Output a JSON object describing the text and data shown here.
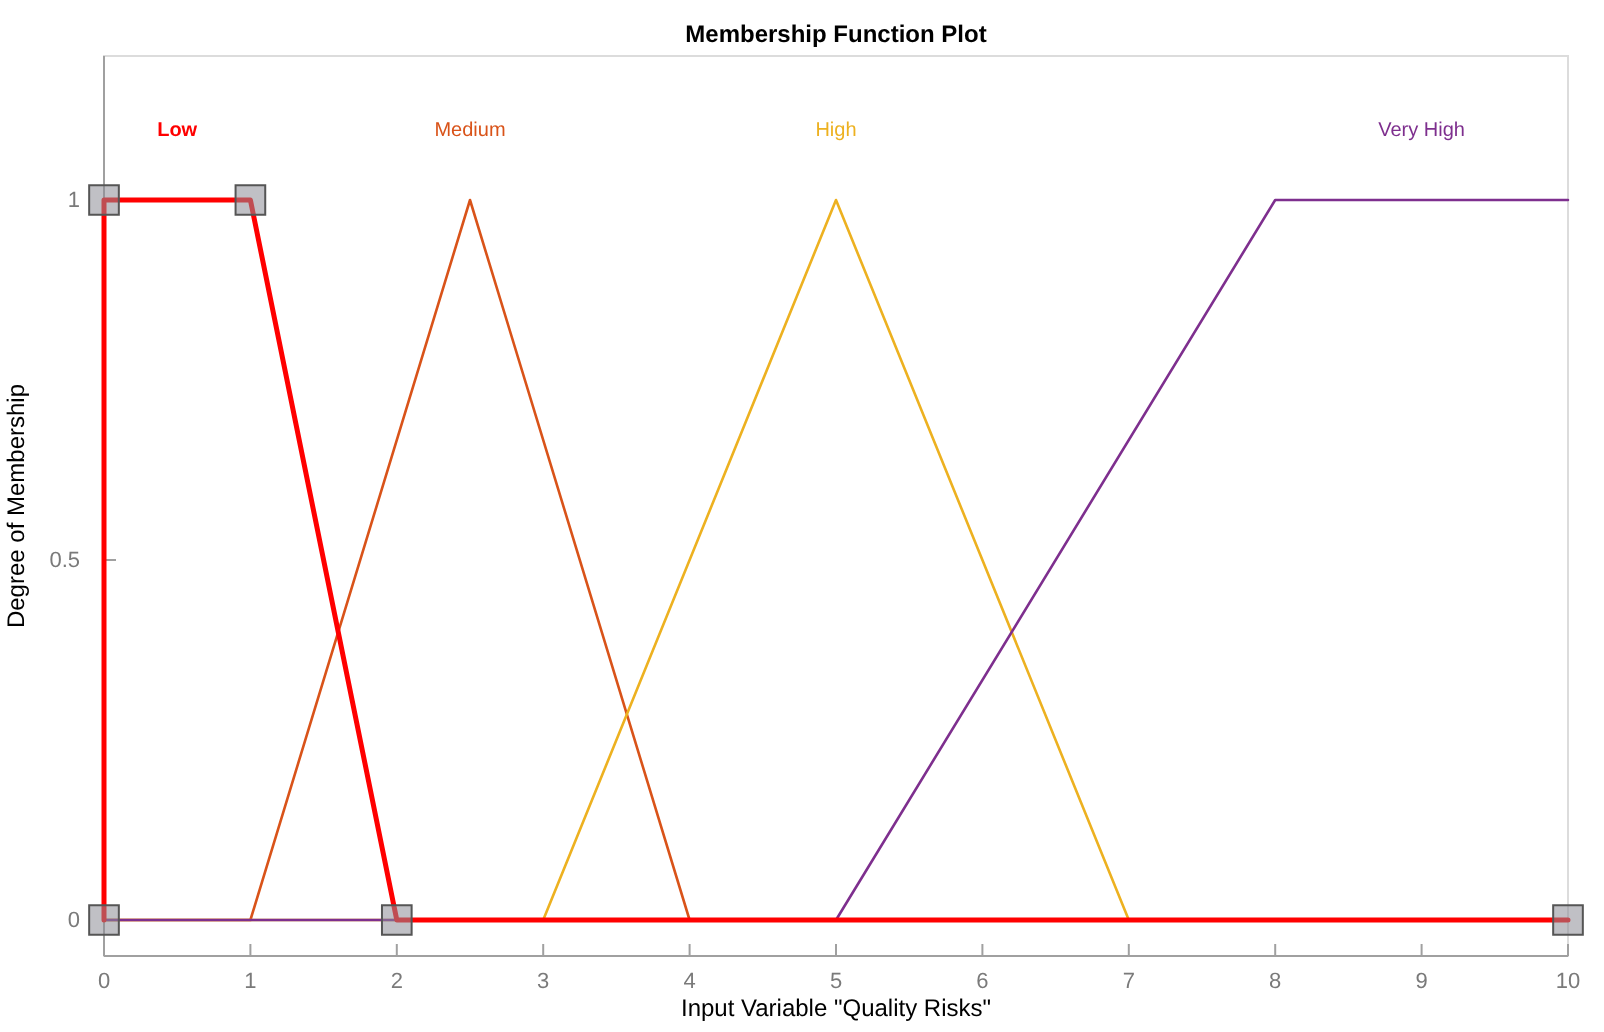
{
  "chart_data": {
    "type": "line",
    "title": "Membership Function Plot",
    "xlabel": "Input Variable \"Quality Risks\"",
    "ylabel": "Degree of Membership",
    "xlim": [
      0,
      10
    ],
    "xticks": [
      0,
      1,
      2,
      3,
      4,
      5,
      6,
      7,
      8,
      9,
      10
    ],
    "ylim": [
      -0.05,
      1.2
    ],
    "yticks": [
      0,
      0.5,
      1
    ],
    "grid": false,
    "line_style": "solid",
    "series": [
      {
        "name": "Medium",
        "color": "#d95319",
        "x": [
          0,
          1,
          2.5,
          4,
          10
        ],
        "values": [
          0,
          0,
          1,
          0,
          0
        ],
        "marker": "none"
      },
      {
        "name": "High",
        "color": "#edb120",
        "x": [
          0,
          3,
          5,
          7,
          10
        ],
        "values": [
          0,
          0,
          1,
          0,
          0
        ],
        "marker": "none"
      },
      {
        "name": "Very High",
        "color": "#7e2f8e",
        "x": [
          0,
          5,
          8,
          10
        ],
        "values": [
          0,
          0,
          1,
          1
        ],
        "marker": "none"
      },
      {
        "name": "Low",
        "color": "#ff0000",
        "x": [
          0,
          0,
          1,
          2,
          10
        ],
        "values": [
          0,
          1,
          1,
          0,
          0
        ],
        "marker": "square"
      }
    ]
  }
}
